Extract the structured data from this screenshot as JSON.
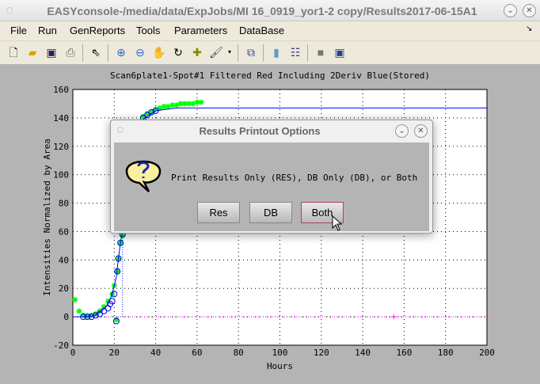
{
  "window": {
    "title": "EASYconsole-/media/data/ExpJobs/MI 16_0919_yor1-2 copy/Results2017-06-15A1"
  },
  "menu": [
    "File",
    "Run",
    "GenReports",
    "Tools",
    "Parameters",
    "DataBase"
  ],
  "toolbar": [
    "new-file-icon",
    "open-folder-icon",
    "save-icon",
    "print-icon",
    "pointer-icon",
    "zoom-in-icon",
    "zoom-out-icon",
    "pan-hand-icon",
    "rotate-icon",
    "data-cursor-icon",
    "brush-icon",
    "link-icon",
    "colorbar-icon",
    "legend-icon",
    "hide-plot-icon",
    "show-plot-icon"
  ],
  "chart_data": {
    "type": "scatter",
    "title": "Scan6plate1-Spot#1 Filtered Red Including 2Deriv Blue(Stored)",
    "xlabel": "Hours",
    "ylabel": "Intensities Normalized by Area",
    "xlim": [
      0,
      200
    ],
    "ylim": [
      -20,
      160
    ],
    "xticks": [
      0,
      20,
      40,
      60,
      80,
      100,
      120,
      140,
      160,
      180,
      200
    ],
    "yticks": [
      -20,
      0,
      20,
      40,
      60,
      80,
      100,
      120,
      140,
      160
    ],
    "grid": true,
    "series": [
      {
        "color": "#00ff00",
        "marker": "asterisk",
        "x": [
          1,
          3,
          5,
          7,
          9,
          11,
          13,
          15,
          17,
          19,
          20,
          21,
          21.5,
          22,
          23,
          24,
          34,
          36,
          38,
          40,
          42,
          44,
          46,
          48,
          50,
          52,
          54,
          56,
          58,
          60,
          62
        ],
        "y": [
          12,
          4,
          1,
          0.5,
          1,
          2,
          4,
          7,
          11,
          16,
          22,
          -2,
          32,
          41,
          52,
          57,
          141,
          143,
          144,
          146,
          147,
          148,
          148,
          149,
          149,
          150,
          150,
          150,
          150,
          151,
          151
        ]
      },
      {
        "color": "#0000ff",
        "marker": "circle",
        "x": [
          5,
          7,
          9,
          11,
          13,
          15,
          17,
          18,
          19,
          20,
          21,
          21.5,
          22,
          23,
          24,
          34,
          36,
          38,
          40
        ],
        "y": [
          0,
          0,
          0,
          1,
          2,
          4,
          6,
          9,
          11,
          16,
          -3,
          32,
          41,
          52,
          58,
          140,
          142,
          144,
          145
        ]
      },
      {
        "color": "#0000ff",
        "marker": "line",
        "x": [
          0,
          5,
          10,
          14,
          17,
          19,
          21,
          22,
          23,
          24,
          30,
          34,
          40,
          50,
          60,
          200
        ],
        "y": [
          0,
          0,
          0.5,
          4,
          9,
          16,
          28,
          41,
          52,
          60,
          125,
          139,
          145,
          147,
          147,
          147
        ]
      }
    ],
    "vline_x": 24,
    "hline_y": 0,
    "magenta_marker": {
      "x": 155,
      "y": 0
    }
  },
  "dialog": {
    "title": "Results Printout Options",
    "message": "Print Results Only (RES), DB Only (DB), or Both",
    "icon": "question-icon",
    "buttons": [
      "Res",
      "DB",
      "Both"
    ]
  }
}
